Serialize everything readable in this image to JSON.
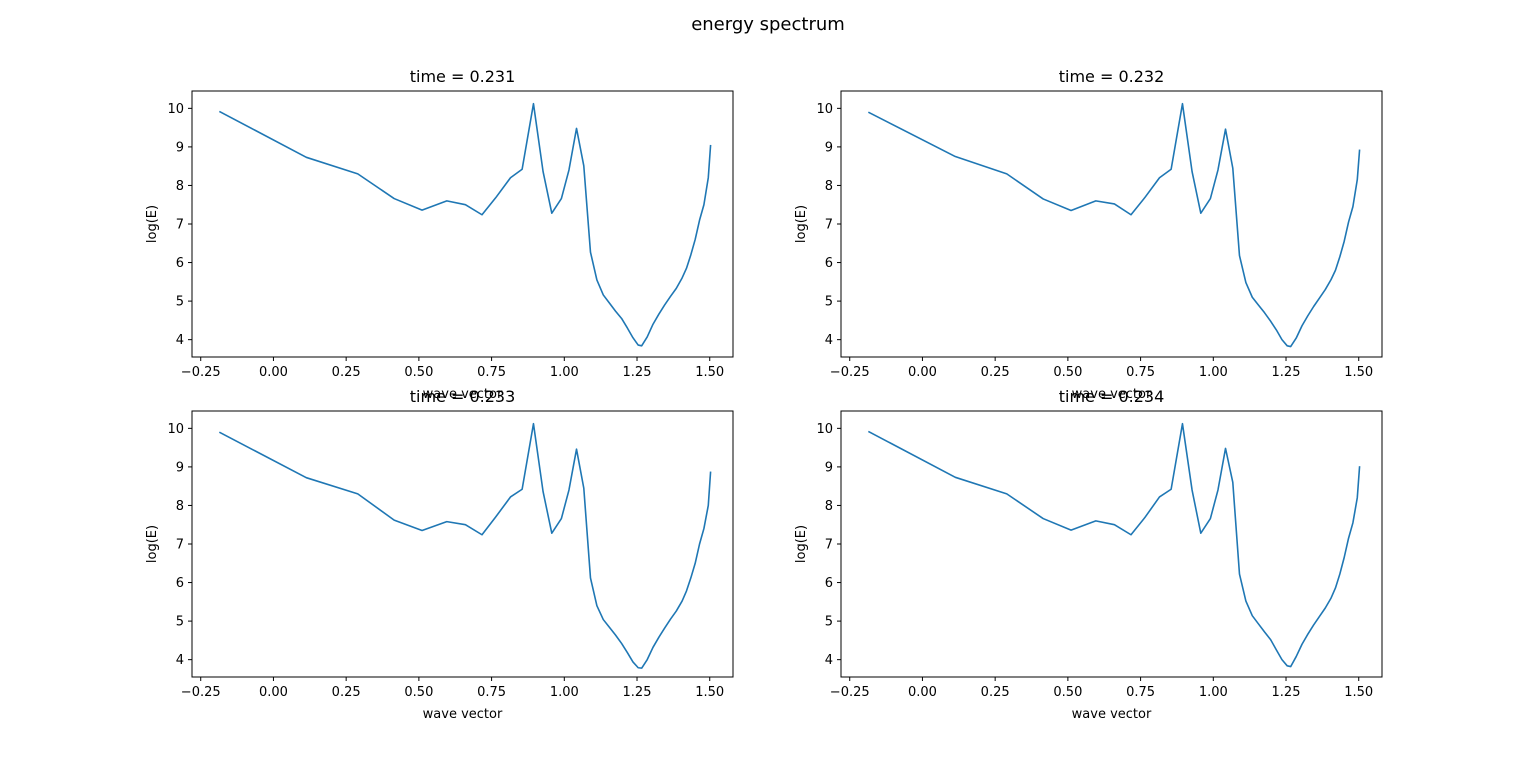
{
  "figure": {
    "suptitle": "energy spectrum"
  },
  "chart_data": [
    {
      "type": "line",
      "title": "time = 0.231",
      "xlabel": "wave vector",
      "ylabel": "log(E)",
      "xlim": [
        -0.28,
        1.58
      ],
      "ylim": [
        3.55,
        10.45
      ],
      "xticks": [
        -0.25,
        0.0,
        0.25,
        0.5,
        0.75,
        1.0,
        1.25,
        1.5
      ],
      "xticklabels": [
        "−0.25",
        "0.00",
        "0.25",
        "0.50",
        "0.75",
        "1.00",
        "1.25",
        "1.50"
      ],
      "yticks": [
        4,
        5,
        6,
        7,
        8,
        9,
        10
      ],
      "yticklabels": [
        "4",
        "5",
        "6",
        "7",
        "8",
        "9",
        "10"
      ],
      "grid": false,
      "color": "#1f77b4",
      "series": [
        {
          "x": [
            -0.186,
            0.113,
            0.29,
            0.415,
            0.511,
            0.596,
            0.66,
            0.717,
            0.764,
            0.815,
            0.855,
            0.894,
            0.927,
            0.957,
            0.99,
            1.016,
            1.042,
            1.067,
            1.09,
            1.112,
            1.134,
            1.155,
            1.176,
            1.197,
            1.217,
            1.236,
            1.254,
            1.266,
            1.285,
            1.305,
            1.325,
            1.345,
            1.365,
            1.385,
            1.405,
            1.42,
            1.435,
            1.45,
            1.465,
            1.48,
            1.495,
            1.503
          ],
          "y": [
            9.92,
            8.73,
            8.3,
            7.66,
            7.36,
            7.6,
            7.5,
            7.24,
            7.68,
            8.2,
            8.42,
            10.12,
            8.36,
            7.28,
            7.66,
            8.4,
            9.48,
            8.51,
            6.27,
            5.55,
            5.16,
            4.95,
            4.74,
            4.55,
            4.3,
            4.05,
            3.86,
            3.84,
            4.07,
            4.4,
            4.66,
            4.9,
            5.12,
            5.33,
            5.6,
            5.85,
            6.2,
            6.6,
            7.1,
            7.5,
            8.2,
            9.05
          ]
        }
      ]
    },
    {
      "type": "line",
      "title": "time = 0.232",
      "xlabel": "wave vector",
      "ylabel": "log(E)",
      "xlim": [
        -0.28,
        1.58
      ],
      "ylim": [
        3.55,
        10.45
      ],
      "xticks": [
        -0.25,
        0.0,
        0.25,
        0.5,
        0.75,
        1.0,
        1.25,
        1.5
      ],
      "xticklabels": [
        "−0.25",
        "0.00",
        "0.25",
        "0.50",
        "0.75",
        "1.00",
        "1.25",
        "1.50"
      ],
      "yticks": [
        4,
        5,
        6,
        7,
        8,
        9,
        10
      ],
      "yticklabels": [
        "4",
        "5",
        "6",
        "7",
        "8",
        "9",
        "10"
      ],
      "grid": false,
      "color": "#1f77b4",
      "series": [
        {
          "x": [
            -0.186,
            0.113,
            0.29,
            0.415,
            0.511,
            0.596,
            0.66,
            0.717,
            0.764,
            0.815,
            0.855,
            0.894,
            0.927,
            0.957,
            0.99,
            1.016,
            1.042,
            1.067,
            1.09,
            1.112,
            1.134,
            1.155,
            1.176,
            1.197,
            1.217,
            1.236,
            1.254,
            1.266,
            1.285,
            1.305,
            1.325,
            1.345,
            1.365,
            1.385,
            1.405,
            1.42,
            1.435,
            1.45,
            1.465,
            1.48,
            1.495,
            1.503
          ],
          "y": [
            9.9,
            8.75,
            8.3,
            7.65,
            7.35,
            7.6,
            7.52,
            7.24,
            7.68,
            8.2,
            8.42,
            10.12,
            8.36,
            7.28,
            7.66,
            8.4,
            9.46,
            8.45,
            6.18,
            5.48,
            5.1,
            4.9,
            4.7,
            4.48,
            4.25,
            4.0,
            3.84,
            3.82,
            4.04,
            4.36,
            4.62,
            4.86,
            5.08,
            5.3,
            5.56,
            5.8,
            6.15,
            6.55,
            7.05,
            7.45,
            8.15,
            8.93
          ]
        }
      ]
    },
    {
      "type": "line",
      "title": "time = 0.233",
      "xlabel": "wave vector",
      "ylabel": "log(E)",
      "xlim": [
        -0.28,
        1.58
      ],
      "ylim": [
        3.55,
        10.45
      ],
      "xticks": [
        -0.25,
        0.0,
        0.25,
        0.5,
        0.75,
        1.0,
        1.25,
        1.5
      ],
      "xticklabels": [
        "−0.25",
        "0.00",
        "0.25",
        "0.50",
        "0.75",
        "1.00",
        "1.25",
        "1.50"
      ],
      "yticks": [
        4,
        5,
        6,
        7,
        8,
        9,
        10
      ],
      "yticklabels": [
        "4",
        "5",
        "6",
        "7",
        "8",
        "9",
        "10"
      ],
      "grid": false,
      "color": "#1f77b4",
      "series": [
        {
          "x": [
            -0.186,
            0.113,
            0.29,
            0.415,
            0.511,
            0.596,
            0.66,
            0.717,
            0.764,
            0.815,
            0.855,
            0.894,
            0.927,
            0.957,
            0.99,
            1.016,
            1.042,
            1.067,
            1.09,
            1.112,
            1.134,
            1.155,
            1.176,
            1.197,
            1.217,
            1.236,
            1.254,
            1.266,
            1.285,
            1.305,
            1.325,
            1.345,
            1.365,
            1.385,
            1.405,
            1.42,
            1.435,
            1.45,
            1.465,
            1.48,
            1.495,
            1.503
          ],
          "y": [
            9.9,
            8.72,
            8.3,
            7.62,
            7.35,
            7.58,
            7.5,
            7.24,
            7.7,
            8.22,
            8.42,
            10.12,
            8.36,
            7.28,
            7.66,
            8.4,
            9.46,
            8.45,
            6.12,
            5.4,
            5.04,
            4.84,
            4.64,
            4.42,
            4.18,
            3.94,
            3.79,
            3.78,
            4.0,
            4.32,
            4.58,
            4.82,
            5.05,
            5.26,
            5.52,
            5.78,
            6.12,
            6.5,
            7.0,
            7.4,
            8.0,
            8.88
          ]
        }
      ]
    },
    {
      "type": "line",
      "title": "time = 0.234",
      "xlabel": "wave vector",
      "ylabel": "log(E)",
      "xlim": [
        -0.28,
        1.58
      ],
      "ylim": [
        3.55,
        10.45
      ],
      "xticks": [
        -0.25,
        0.0,
        0.25,
        0.5,
        0.75,
        1.0,
        1.25,
        1.5
      ],
      "xticklabels": [
        "−0.25",
        "0.00",
        "0.25",
        "0.50",
        "0.75",
        "1.00",
        "1.25",
        "1.50"
      ],
      "yticks": [
        4,
        5,
        6,
        7,
        8,
        9,
        10
      ],
      "yticklabels": [
        "4",
        "5",
        "6",
        "7",
        "8",
        "9",
        "10"
      ],
      "grid": false,
      "color": "#1f77b4",
      "series": [
        {
          "x": [
            -0.186,
            0.113,
            0.29,
            0.415,
            0.511,
            0.596,
            0.66,
            0.717,
            0.764,
            0.815,
            0.855,
            0.894,
            0.927,
            0.957,
            0.99,
            1.016,
            1.042,
            1.067,
            1.09,
            1.112,
            1.134,
            1.155,
            1.176,
            1.197,
            1.217,
            1.236,
            1.254,
            1.266,
            1.285,
            1.305,
            1.325,
            1.345,
            1.365,
            1.385,
            1.405,
            1.42,
            1.435,
            1.45,
            1.465,
            1.48,
            1.495,
            1.503
          ],
          "y": [
            9.92,
            8.73,
            8.3,
            7.66,
            7.36,
            7.6,
            7.5,
            7.24,
            7.68,
            8.22,
            8.42,
            10.12,
            8.4,
            7.28,
            7.66,
            8.4,
            9.48,
            8.6,
            6.22,
            5.52,
            5.14,
            4.93,
            4.72,
            4.52,
            4.25,
            4.0,
            3.84,
            3.82,
            4.08,
            4.4,
            4.66,
            4.9,
            5.12,
            5.34,
            5.6,
            5.86,
            6.22,
            6.65,
            7.15,
            7.55,
            8.2,
            9.02
          ]
        }
      ]
    }
  ]
}
